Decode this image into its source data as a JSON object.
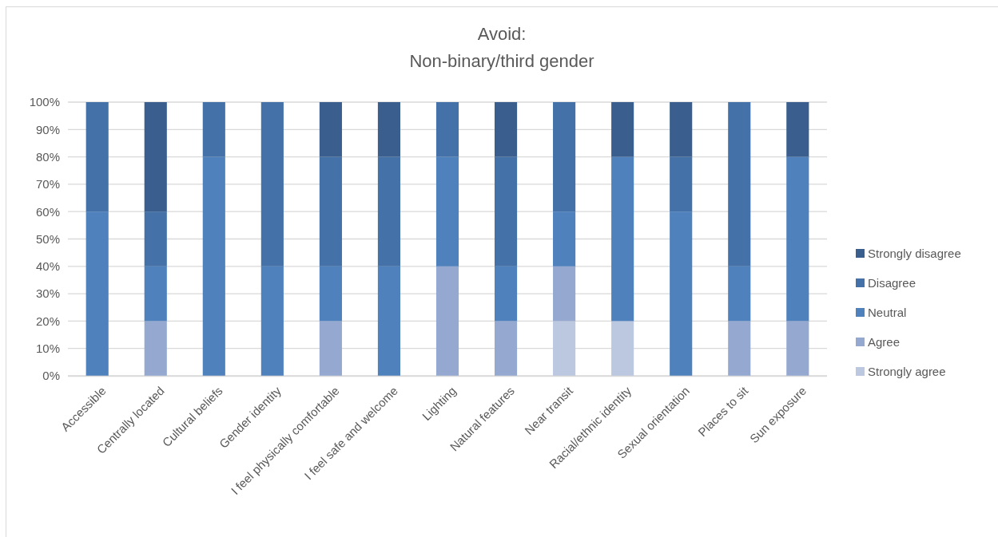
{
  "chart_data": {
    "type": "bar",
    "stacked": true,
    "title": "Avoid:\nNon-binary/third gender",
    "categories": [
      "Accessible",
      "Centrally located",
      "Cultural beliefs",
      "Gender identity",
      "I feel physically comfortable",
      "I feel safe and welcome",
      "Lighting",
      "Natural features",
      "Near transit",
      "Racial/ethnic identity",
      "Sexual orientation",
      "Places to sit",
      "Sun exposure"
    ],
    "series": [
      {
        "name": "Strongly agree",
        "color": "#bbc8e0",
        "values": [
          0,
          0,
          0,
          0,
          0,
          0,
          0,
          0,
          20,
          20,
          0,
          0,
          0
        ]
      },
      {
        "name": "Agree",
        "color": "#95a9d0",
        "values": [
          0,
          20,
          0,
          0,
          20,
          0,
          40,
          20,
          20,
          0,
          0,
          20,
          20
        ]
      },
      {
        "name": "Neutral",
        "color": "#4f81bd",
        "values": [
          60,
          20,
          80,
          40,
          20,
          40,
          40,
          20,
          20,
          60,
          60,
          20,
          60
        ]
      },
      {
        "name": "Disagree",
        "color": "#4472a8",
        "values": [
          40,
          20,
          20,
          60,
          40,
          40,
          20,
          40,
          40,
          0,
          20,
          60,
          0
        ]
      },
      {
        "name": "Strongly disagree",
        "color": "#3a5f8e",
        "values": [
          0,
          40,
          0,
          0,
          20,
          20,
          0,
          20,
          0,
          20,
          20,
          0,
          20
        ]
      }
    ],
    "ylim": [
      0,
      100
    ],
    "yticks": [
      {
        "value": 0,
        "label": "0%"
      },
      {
        "value": 10,
        "label": "10%"
      },
      {
        "value": 20,
        "label": "20%"
      },
      {
        "value": 30,
        "label": "30%"
      },
      {
        "value": 40,
        "label": "40%"
      },
      {
        "value": 50,
        "label": "50%"
      },
      {
        "value": 60,
        "label": "60%"
      },
      {
        "value": 70,
        "label": "70%"
      },
      {
        "value": 80,
        "label": "80%"
      },
      {
        "value": 90,
        "label": "90%"
      },
      {
        "value": 100,
        "label": "100%"
      }
    ],
    "grid": "y",
    "legend": "right"
  }
}
